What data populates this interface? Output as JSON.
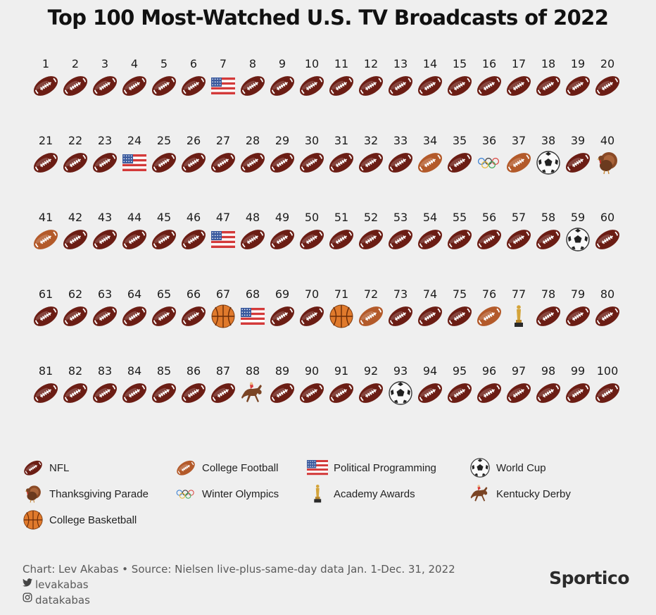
{
  "title": "Top 100 Most-Watched U.S. TV Broadcasts of 2022",
  "chart_data": {
    "type": "table",
    "title": "Top 100 Most-Watched U.S. TV Broadcasts of 2022",
    "ranks": [
      "1",
      "2",
      "3",
      "4",
      "5",
      "6",
      "7",
      "8",
      "9",
      "10",
      "11",
      "12",
      "13",
      "14",
      "15",
      "16",
      "17",
      "18",
      "19",
      "20",
      "21",
      "22",
      "23",
      "24",
      "25",
      "26",
      "27",
      "28",
      "29",
      "30",
      "31",
      "32",
      "33",
      "34",
      "35",
      "36",
      "37",
      "38",
      "39",
      "40",
      "41",
      "42",
      "43",
      "44",
      "45",
      "46",
      "47",
      "48",
      "49",
      "50",
      "51",
      "52",
      "53",
      "54",
      "55",
      "56",
      "57",
      "58",
      "59",
      "60",
      "61",
      "62",
      "63",
      "64",
      "65",
      "66",
      "67",
      "68",
      "69",
      "70",
      "71",
      "72",
      "73",
      "74",
      "75",
      "76",
      "77",
      "78",
      "79",
      "80",
      "81",
      "82",
      "83",
      "84",
      "85",
      "86",
      "87",
      "88",
      "89",
      "90",
      "91",
      "92",
      "93",
      "94",
      "95",
      "96",
      "97",
      "98",
      "99",
      "100"
    ],
    "categories": [
      "nfl",
      "nfl",
      "nfl",
      "nfl",
      "nfl",
      "nfl",
      "political",
      "nfl",
      "nfl",
      "nfl",
      "nfl",
      "nfl",
      "nfl",
      "nfl",
      "nfl",
      "nfl",
      "nfl",
      "nfl",
      "nfl",
      "nfl",
      "nfl",
      "nfl",
      "nfl",
      "political",
      "nfl",
      "nfl",
      "nfl",
      "nfl",
      "nfl",
      "nfl",
      "nfl",
      "nfl",
      "nfl",
      "college_football",
      "nfl",
      "olympics",
      "college_football",
      "world_cup",
      "nfl",
      "thanksgiving",
      "college_football",
      "nfl",
      "nfl",
      "nfl",
      "nfl",
      "nfl",
      "political",
      "nfl",
      "nfl",
      "nfl",
      "nfl",
      "nfl",
      "nfl",
      "nfl",
      "nfl",
      "nfl",
      "nfl",
      "nfl",
      "world_cup",
      "nfl",
      "nfl",
      "nfl",
      "nfl",
      "nfl",
      "nfl",
      "nfl",
      "basketball",
      "political",
      "nfl",
      "nfl",
      "basketball",
      "college_football",
      "nfl",
      "nfl",
      "nfl",
      "college_football",
      "oscars",
      "nfl",
      "nfl",
      "nfl",
      "nfl",
      "nfl",
      "nfl",
      "nfl",
      "nfl",
      "nfl",
      "nfl",
      "derby",
      "nfl",
      "nfl",
      "nfl",
      "nfl",
      "world_cup",
      "nfl",
      "nfl",
      "nfl",
      "nfl",
      "nfl",
      "nfl",
      "nfl"
    ]
  },
  "legend": [
    {
      "key": "nfl",
      "label": "NFL",
      "icon": "nfl-football-icon"
    },
    {
      "key": "college_football",
      "label": "College Football",
      "icon": "college-football-icon"
    },
    {
      "key": "political",
      "label": "Political Programming",
      "icon": "us-flag-icon"
    },
    {
      "key": "world_cup",
      "label": "World Cup",
      "icon": "soccer-ball-icon"
    },
    {
      "key": "thanksgiving",
      "label": "Thanksgiving Parade",
      "icon": "turkey-icon"
    },
    {
      "key": "olympics",
      "label": "Winter Olympics",
      "icon": "olympic-rings-icon"
    },
    {
      "key": "oscars",
      "label": "Academy Awards",
      "icon": "oscar-statue-icon"
    },
    {
      "key": "derby",
      "label": "Kentucky Derby",
      "icon": "horse-racing-icon"
    },
    {
      "key": "basketball",
      "label": "College Basketball",
      "icon": "basketball-icon"
    }
  ],
  "footer": {
    "credit": "Chart: Lev Akabas • Source: Nielsen live-plus-same-day data Jan. 1-Dec. 31, 2022",
    "twitter": "levakabas",
    "instagram": "datakabas",
    "brand": "Sportico"
  },
  "colors": {
    "nfl": "#6b1d14",
    "college_football": "#b35a2a",
    "basketball": "#e07a2c",
    "background": "#efefef"
  }
}
